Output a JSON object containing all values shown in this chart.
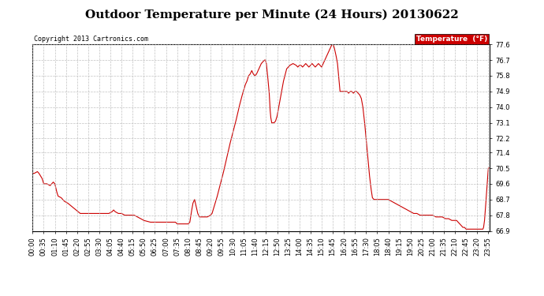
{
  "title": "Outdoor Temperature per Minute (24 Hours) 20130622",
  "copyright_text": "Copyright 2013 Cartronics.com",
  "legend_label": "Temperature  (°F)",
  "legend_bg": "#cc0000",
  "legend_text_color": "#ffffff",
  "line_color": "#cc0000",
  "background_color": "#ffffff",
  "grid_color": "#bbbbbb",
  "ylim": [
    66.9,
    77.6
  ],
  "yticks": [
    66.9,
    67.8,
    68.7,
    69.6,
    70.5,
    71.4,
    72.2,
    73.1,
    74.0,
    74.9,
    75.8,
    76.7,
    77.6
  ],
  "title_fontsize": 11,
  "tick_fontsize": 6,
  "copyright_fontsize": 6,
  "x_tick_interval": 35,
  "num_minutes": 1440,
  "keypoints": [
    [
      0,
      70.2
    ],
    [
      5,
      70.2
    ],
    [
      15,
      70.3
    ],
    [
      20,
      70.2
    ],
    [
      30,
      69.9
    ],
    [
      35,
      69.6
    ],
    [
      45,
      69.6
    ],
    [
      55,
      69.5
    ],
    [
      60,
      69.6
    ],
    [
      65,
      69.7
    ],
    [
      70,
      69.6
    ],
    [
      75,
      69.2
    ],
    [
      80,
      68.9
    ],
    [
      90,
      68.8
    ],
    [
      100,
      68.6
    ],
    [
      110,
      68.5
    ],
    [
      130,
      68.2
    ],
    [
      150,
      67.9
    ],
    [
      165,
      67.9
    ],
    [
      180,
      67.9
    ],
    [
      200,
      67.9
    ],
    [
      220,
      67.9
    ],
    [
      240,
      67.9
    ],
    [
      250,
      68.0
    ],
    [
      255,
      68.1
    ],
    [
      260,
      68.0
    ],
    [
      270,
      67.9
    ],
    [
      280,
      67.9
    ],
    [
      290,
      67.8
    ],
    [
      300,
      67.8
    ],
    [
      310,
      67.8
    ],
    [
      320,
      67.8
    ],
    [
      330,
      67.7
    ],
    [
      350,
      67.5
    ],
    [
      370,
      67.4
    ],
    [
      400,
      67.4
    ],
    [
      420,
      67.4
    ],
    [
      440,
      67.4
    ],
    [
      450,
      67.4
    ],
    [
      455,
      67.3
    ],
    [
      460,
      67.3
    ],
    [
      470,
      67.3
    ],
    [
      480,
      67.3
    ],
    [
      490,
      67.3
    ],
    [
      495,
      67.4
    ],
    [
      500,
      68.0
    ],
    [
      505,
      68.5
    ],
    [
      510,
      68.7
    ],
    [
      515,
      68.3
    ],
    [
      520,
      67.9
    ],
    [
      525,
      67.7
    ],
    [
      530,
      67.7
    ],
    [
      540,
      67.7
    ],
    [
      550,
      67.7
    ],
    [
      560,
      67.8
    ],
    [
      565,
      67.9
    ],
    [
      570,
      68.2
    ],
    [
      580,
      68.8
    ],
    [
      590,
      69.5
    ],
    [
      600,
      70.2
    ],
    [
      610,
      71.0
    ],
    [
      620,
      71.8
    ],
    [
      630,
      72.5
    ],
    [
      640,
      73.2
    ],
    [
      650,
      74.0
    ],
    [
      660,
      74.7
    ],
    [
      665,
      75.0
    ],
    [
      670,
      75.3
    ],
    [
      675,
      75.5
    ],
    [
      680,
      75.8
    ],
    [
      685,
      75.9
    ],
    [
      690,
      76.1
    ],
    [
      695,
      75.9
    ],
    [
      700,
      75.8
    ],
    [
      705,
      75.9
    ],
    [
      710,
      76.1
    ],
    [
      715,
      76.3
    ],
    [
      720,
      76.5
    ],
    [
      725,
      76.6
    ],
    [
      730,
      76.7
    ],
    [
      733,
      76.7
    ],
    [
      736,
      76.5
    ],
    [
      740,
      75.8
    ],
    [
      745,
      74.8
    ],
    [
      748,
      73.8
    ],
    [
      750,
      73.4
    ],
    [
      753,
      73.1
    ],
    [
      756,
      73.1
    ],
    [
      760,
      73.1
    ],
    [
      765,
      73.2
    ],
    [
      770,
      73.5
    ],
    [
      780,
      74.5
    ],
    [
      790,
      75.5
    ],
    [
      800,
      76.2
    ],
    [
      810,
      76.4
    ],
    [
      820,
      76.5
    ],
    [
      830,
      76.4
    ],
    [
      835,
      76.3
    ],
    [
      840,
      76.4
    ],
    [
      845,
      76.4
    ],
    [
      850,
      76.3
    ],
    [
      855,
      76.4
    ],
    [
      860,
      76.5
    ],
    [
      865,
      76.4
    ],
    [
      870,
      76.3
    ],
    [
      875,
      76.4
    ],
    [
      880,
      76.5
    ],
    [
      885,
      76.4
    ],
    [
      890,
      76.3
    ],
    [
      895,
      76.4
    ],
    [
      900,
      76.5
    ],
    [
      905,
      76.4
    ],
    [
      910,
      76.3
    ],
    [
      915,
      76.5
    ],
    [
      920,
      76.7
    ],
    [
      925,
      76.9
    ],
    [
      930,
      77.1
    ],
    [
      935,
      77.3
    ],
    [
      940,
      77.5
    ],
    [
      943,
      77.6
    ],
    [
      946,
      77.6
    ],
    [
      950,
      77.4
    ],
    [
      955,
      77.0
    ],
    [
      960,
      76.5
    ],
    [
      965,
      75.5
    ],
    [
      968,
      74.9
    ],
    [
      970,
      74.9
    ],
    [
      975,
      74.9
    ],
    [
      980,
      74.9
    ],
    [
      985,
      74.9
    ],
    [
      990,
      74.9
    ],
    [
      995,
      74.8
    ],
    [
      1000,
      74.9
    ],
    [
      1005,
      74.9
    ],
    [
      1010,
      74.8
    ],
    [
      1015,
      74.9
    ],
    [
      1020,
      74.9
    ],
    [
      1025,
      74.8
    ],
    [
      1030,
      74.7
    ],
    [
      1035,
      74.5
    ],
    [
      1040,
      74.0
    ],
    [
      1045,
      73.2
    ],
    [
      1050,
      72.2
    ],
    [
      1055,
      71.2
    ],
    [
      1060,
      70.2
    ],
    [
      1065,
      69.4
    ],
    [
      1070,
      68.8
    ],
    [
      1075,
      68.7
    ],
    [
      1080,
      68.7
    ],
    [
      1085,
      68.7
    ],
    [
      1090,
      68.7
    ],
    [
      1095,
      68.7
    ],
    [
      1100,
      68.7
    ],
    [
      1105,
      68.7
    ],
    [
      1110,
      68.7
    ],
    [
      1115,
      68.7
    ],
    [
      1120,
      68.7
    ],
    [
      1130,
      68.6
    ],
    [
      1140,
      68.5
    ],
    [
      1150,
      68.4
    ],
    [
      1160,
      68.3
    ],
    [
      1170,
      68.2
    ],
    [
      1180,
      68.1
    ],
    [
      1190,
      68.0
    ],
    [
      1200,
      67.9
    ],
    [
      1210,
      67.9
    ],
    [
      1220,
      67.8
    ],
    [
      1230,
      67.8
    ],
    [
      1240,
      67.8
    ],
    [
      1250,
      67.8
    ],
    [
      1260,
      67.8
    ],
    [
      1270,
      67.7
    ],
    [
      1280,
      67.7
    ],
    [
      1290,
      67.7
    ],
    [
      1300,
      67.6
    ],
    [
      1310,
      67.6
    ],
    [
      1320,
      67.5
    ],
    [
      1325,
      67.5
    ],
    [
      1330,
      67.5
    ],
    [
      1335,
      67.5
    ],
    [
      1340,
      67.4
    ],
    [
      1345,
      67.3
    ],
    [
      1350,
      67.2
    ],
    [
      1355,
      67.1
    ],
    [
      1360,
      67.1
    ],
    [
      1365,
      67.0
    ],
    [
      1370,
      67.0
    ],
    [
      1375,
      67.0
    ],
    [
      1380,
      67.0
    ],
    [
      1385,
      67.0
    ],
    [
      1390,
      67.0
    ],
    [
      1395,
      67.0
    ],
    [
      1400,
      67.0
    ],
    [
      1405,
      67.0
    ],
    [
      1410,
      67.0
    ],
    [
      1415,
      67.0
    ],
    [
      1418,
      67.0
    ],
    [
      1420,
      67.1
    ],
    [
      1423,
      67.5
    ],
    [
      1426,
      68.2
    ],
    [
      1429,
      69.0
    ],
    [
      1432,
      69.8
    ],
    [
      1435,
      70.5
    ],
    [
      1437,
      70.5
    ],
    [
      1439,
      70.5
    ]
  ]
}
